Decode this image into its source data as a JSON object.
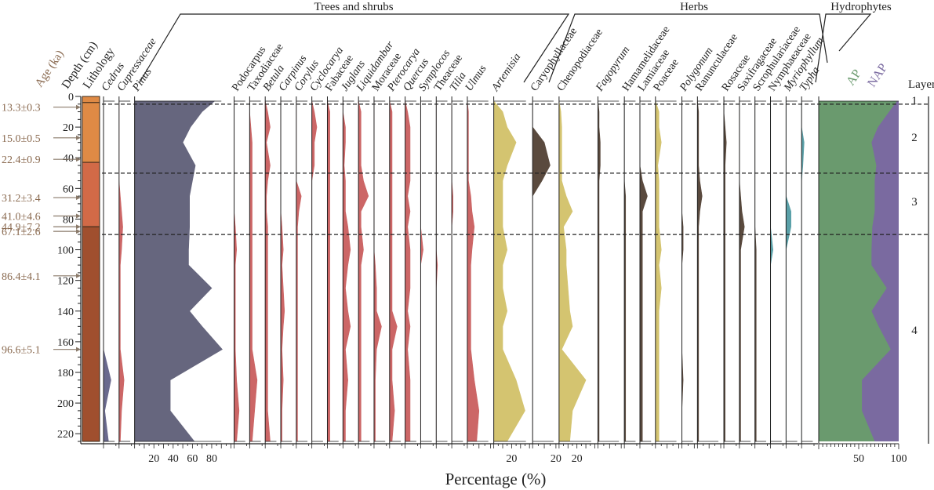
{
  "chart_data": {
    "type": "area",
    "title": "",
    "xlabel": "Percentage (%)",
    "ylabel": "Depth (cm)",
    "ylim": [
      0,
      225
    ],
    "y_ticks": [
      0,
      20,
      40,
      60,
      80,
      100,
      120,
      140,
      160,
      180,
      200,
      220
    ],
    "depth_header": "Depth (cm)",
    "age_header": "Age (ka)",
    "lithology_header": "Lithology",
    "layer_header": "Layer",
    "groups": [
      "Trees and shrubs",
      "Herbs",
      "Hydrophytes"
    ],
    "depths": [
      3,
      10,
      20,
      30,
      45,
      55,
      65,
      75,
      85,
      100,
      110,
      125,
      140,
      150,
      165,
      185,
      205,
      225
    ],
    "ages": [
      {
        "label": "13.3±0.3",
        "depth": 7
      },
      {
        "label": "15.0±0.5",
        "depth": 27
      },
      {
        "label": "22.4±0.9",
        "depth": 41
      },
      {
        "label": "31.2±3.4",
        "depth": 66
      },
      {
        "label": "41.0±4.6",
        "depth": 78
      },
      {
        "label": "44.9±7.2",
        "depth": 85
      },
      {
        "label": "67.1±2.6",
        "depth": 88
      },
      {
        "label": "86.4±4.1",
        "depth": 117
      },
      {
        "label": "96.6±5.1",
        "depth": 165
      }
    ],
    "lithology": [
      {
        "from": 0,
        "to": 4,
        "color": "#df8a45"
      },
      {
        "from": 4,
        "to": 43,
        "color": "#df8a45"
      },
      {
        "from": 43,
        "to": 85,
        "color": "#d26a47"
      },
      {
        "from": 85,
        "to": 225,
        "color": "#a04f2e"
      }
    ],
    "layers": [
      {
        "label": "1",
        "depth": 2
      },
      {
        "label": "2",
        "depth": 26
      },
      {
        "label": "3",
        "depth": 68
      },
      {
        "label": "4",
        "depth": 152
      }
    ],
    "boundaries": [
      2,
      47,
      87
    ],
    "taxa": [
      {
        "name": "Cedrus",
        "italic": true,
        "color": "#6a6a8e",
        "max": 5,
        "values": [
          0,
          0,
          0,
          0,
          0,
          0,
          0,
          0,
          0,
          0,
          0,
          0,
          0,
          0,
          0,
          3,
          0.5,
          2
        ]
      },
      {
        "name": "Cupressaceae",
        "italic": true,
        "color": "#cc6666",
        "max": 5,
        "values": [
          0,
          0,
          0,
          0,
          0,
          0,
          0.5,
          1,
          1.5,
          1,
          0.5,
          0.5,
          0.5,
          0.5,
          0.5,
          2,
          1,
          0.5
        ]
      },
      {
        "name": "Pinus",
        "italic": true,
        "color": "#66667e",
        "max": 100,
        "values": [
          83,
          70,
          58,
          50,
          63,
          60,
          57,
          57,
          57,
          56,
          56,
          80,
          57,
          70,
          91,
          37,
          37,
          62
        ]
      },
      {
        "name": "Podocarpus",
        "italic": false,
        "color": "#cc6666",
        "max": 5,
        "values": [
          0,
          0,
          0,
          0,
          0,
          0,
          0,
          0,
          0.5,
          1,
          0.5,
          0.5,
          0.5,
          0.5,
          0.5,
          1,
          2,
          1
        ]
      },
      {
        "name": "Taxodiaceae",
        "italic": false,
        "color": "#cc6666",
        "max": 5,
        "values": [
          0,
          0,
          0.5,
          1,
          1,
          1,
          1,
          1,
          1,
          1,
          1,
          1,
          1,
          1,
          1,
          3,
          2,
          1
        ]
      },
      {
        "name": "Betula",
        "italic": true,
        "color": "#cc6666",
        "max": 5,
        "values": [
          0,
          1,
          2,
          0.5,
          2,
          1,
          0.5,
          0.5,
          1,
          1,
          1,
          1,
          1,
          1,
          1,
          1,
          1,
          2
        ]
      },
      {
        "name": "Carpinus",
        "italic": true,
        "color": "#cc6666",
        "max": 5,
        "values": [
          0,
          0,
          0,
          0,
          0,
          0,
          0,
          0,
          0.5,
          1,
          0.5,
          1,
          1.5,
          1,
          0.5,
          1,
          0.5,
          0.5
        ]
      },
      {
        "name": "Corylus",
        "italic": true,
        "color": "#cc6666",
        "max": 5,
        "values": [
          0,
          0,
          0,
          0,
          0,
          0,
          2,
          1,
          0.5,
          0.5,
          0.5,
          0.5,
          0.5,
          0.5,
          0.5,
          0.5,
          0.5,
          0.5
        ]
      },
      {
        "name": "Cyclocarya",
        "italic": true,
        "color": "#cc6666",
        "max": 5,
        "values": [
          0,
          1,
          2,
          1,
          1,
          0,
          0,
          0,
          0,
          0,
          0,
          0,
          0,
          0,
          0,
          0,
          0,
          0
        ]
      },
      {
        "name": "Fabaceae",
        "italic": false,
        "color": "#cc6666",
        "max": 5,
        "values": [
          0,
          1,
          1,
          1,
          1,
          1,
          1,
          1,
          1,
          1,
          1,
          1,
          1,
          1,
          1,
          1,
          1,
          1
        ]
      },
      {
        "name": "Juglans",
        "italic": true,
        "color": "#cc6666",
        "max": 5,
        "values": [
          0,
          0,
          1,
          1,
          0.5,
          1,
          1,
          1,
          2,
          3,
          2,
          1,
          2,
          3,
          1,
          2,
          1,
          1
        ]
      },
      {
        "name": "Liquidambar",
        "italic": true,
        "color": "#cc6666",
        "max": 5,
        "values": [
          0,
          1,
          1,
          1,
          1,
          2,
          4,
          1,
          1,
          2,
          1,
          1,
          1,
          1,
          1,
          1,
          1,
          1
        ]
      },
      {
        "name": "Moraceae",
        "italic": false,
        "color": "#cc6666",
        "max": 5,
        "values": [
          0,
          0,
          0,
          0,
          0,
          0,
          0,
          0,
          0,
          0,
          0.5,
          1,
          1,
          3,
          1,
          0.5,
          0.5,
          0.5
        ]
      },
      {
        "name": "Pterocarya",
        "italic": true,
        "color": "#cc6666",
        "max": 5,
        "values": [
          0,
          1,
          1,
          1,
          1,
          1,
          1,
          1,
          1,
          1,
          1,
          1,
          1,
          3,
          1,
          1,
          2,
          1
        ]
      },
      {
        "name": "Quercus",
        "italic": true,
        "color": "#cc6666",
        "max": 5,
        "values": [
          0,
          1,
          2,
          2,
          2,
          2,
          1,
          2,
          1,
          2,
          2,
          2,
          1,
          2,
          1,
          2,
          2,
          2
        ]
      },
      {
        "name": "Symplocos",
        "italic": true,
        "color": "#cc6666",
        "max": 5,
        "values": [
          0,
          0,
          0,
          0,
          0,
          0,
          0,
          0,
          0,
          1,
          0,
          0,
          0,
          0,
          0,
          0,
          0,
          0
        ]
      },
      {
        "name": "Theaceae",
        "italic": false,
        "color": "#cc6666",
        "max": 5,
        "values": [
          0,
          0,
          0,
          0,
          0,
          0,
          0,
          0,
          0,
          0,
          0.5,
          0,
          0,
          0,
          0,
          0,
          0,
          0
        ]
      },
      {
        "name": "Tilia",
        "italic": true,
        "color": "#cc6666",
        "max": 5,
        "values": [
          0,
          0,
          0,
          0,
          0,
          0,
          0.5,
          0.5,
          0,
          0,
          0,
          0,
          0,
          0,
          0,
          0,
          0,
          0
        ]
      },
      {
        "name": "Ulmus",
        "italic": true,
        "color": "#cc6666",
        "max": 20,
        "values": [
          0,
          1,
          1,
          1,
          1,
          1,
          3,
          4,
          6,
          4,
          3,
          3,
          3,
          3,
          3,
          6,
          10,
          8
        ]
      },
      {
        "name": "Artemisia",
        "italic": true,
        "color": "#d4c470",
        "max": 40,
        "values": [
          0,
          10,
          15,
          25,
          15,
          10,
          10,
          10,
          10,
          15,
          10,
          10,
          15,
          10,
          10,
          25,
          35,
          15
        ]
      },
      {
        "name": "Caryophyllaceae",
        "italic": false,
        "color": "#5a4a3e",
        "max": 20,
        "values": [
          0,
          0,
          0,
          10,
          15,
          8,
          0,
          0,
          0,
          0,
          0,
          0,
          0,
          0,
          0,
          0,
          0,
          0
        ]
      },
      {
        "name": "Chenopodiaceae",
        "italic": false,
        "color": "#d4c470",
        "max": 40,
        "values": [
          0,
          2,
          3,
          3,
          3,
          3,
          8,
          15,
          5,
          8,
          8,
          10,
          12,
          15,
          3,
          30,
          15,
          12
        ]
      },
      {
        "name": "Fagopyrum",
        "italic": true,
        "color": "#5a4a3e",
        "max": 20,
        "values": [
          0,
          1,
          1,
          2,
          2,
          1,
          1,
          1,
          1,
          1,
          1,
          1,
          1,
          1,
          1,
          1,
          1,
          1
        ]
      },
      {
        "name": "Hamamelidaceae",
        "italic": false,
        "color": "#5a4a3e",
        "max": 5,
        "values": [
          0,
          0,
          0,
          0,
          0,
          0,
          0.5,
          0.5,
          0.5,
          0.5,
          0.5,
          0.5,
          0.5,
          0.5,
          0.5,
          0.5,
          0.5,
          0.5
        ]
      },
      {
        "name": "Lamiaceae",
        "italic": false,
        "color": "#5a4a3e",
        "max": 5,
        "values": [
          0,
          0,
          0,
          0,
          0,
          1,
          3,
          1,
          1,
          1,
          1,
          1,
          1,
          1,
          1,
          1,
          1,
          1
        ]
      },
      {
        "name": "Poaceae",
        "italic": false,
        "color": "#d4c470",
        "max": 20,
        "values": [
          0,
          3,
          3,
          5,
          2,
          3,
          3,
          3,
          3,
          5,
          3,
          5,
          3,
          3,
          3,
          3,
          3,
          3
        ]
      },
      {
        "name": "Polygonum",
        "italic": true,
        "color": "#5a4a3e",
        "max": 10,
        "values": [
          0,
          0,
          0,
          0,
          0,
          0,
          0,
          0,
          1,
          1,
          0,
          0,
          0,
          0,
          0,
          1,
          0,
          0
        ]
      },
      {
        "name": "Ranunculaceae",
        "italic": false,
        "color": "#5a4a3e",
        "max": 20,
        "values": [
          0,
          1,
          1,
          1,
          1,
          2,
          4,
          2,
          1,
          1,
          1,
          1,
          1,
          1,
          1,
          1,
          1,
          1
        ]
      },
      {
        "name": "Rosaceae",
        "italic": false,
        "color": "#5a4a3e",
        "max": 5,
        "values": [
          0,
          0,
          0.5,
          1,
          0.5,
          0.5,
          0.5,
          0.5,
          0.5,
          0.5,
          0.5,
          0.5,
          0.5,
          0.5,
          0.5,
          0.5,
          0.5,
          0.5
        ]
      },
      {
        "name": "Saxifragaceae",
        "italic": false,
        "color": "#5a4a3e",
        "max": 5,
        "values": [
          0,
          0,
          0,
          0,
          0,
          0,
          0.5,
          1,
          2,
          0.5,
          0.5,
          0.5,
          0.5,
          0.5,
          0.5,
          0.5,
          0.5,
          0.5
        ]
      },
      {
        "name": "Scrophulariaceae",
        "italic": false,
        "color": "#5a4a3e",
        "max": 5,
        "values": [
          0,
          0,
          0,
          0,
          0,
          0,
          0,
          0,
          0,
          0.5,
          0.5,
          0.5,
          0.5,
          0.5,
          0.5,
          0.5,
          0.5,
          0.5
        ]
      },
      {
        "name": "Nymphaeaceae",
        "italic": false,
        "color": "#5aa0a8",
        "max": 5,
        "values": [
          0,
          0,
          0,
          0,
          0,
          0,
          0,
          0,
          0,
          1,
          0,
          0,
          0,
          0,
          0,
          0,
          0,
          0
        ]
      },
      {
        "name": "Myriophyllum",
        "italic": true,
        "color": "#5aa0a8",
        "max": 5,
        "values": [
          0,
          0,
          0,
          0,
          0,
          0,
          0,
          2,
          2,
          0,
          0,
          0,
          0,
          0,
          0,
          0,
          0,
          0
        ]
      },
      {
        "name": "Typha",
        "italic": true,
        "color": "#5aa0a8",
        "max": 5,
        "values": [
          0,
          0,
          0,
          1,
          0.5,
          0,
          0,
          0,
          0,
          0,
          0,
          0,
          0,
          0,
          0,
          0,
          0,
          0
        ]
      }
    ],
    "ap_nap": {
      "ap_label": "AP",
      "nap_label": "NAP",
      "ap_color": "#6a9a6e",
      "nap_color": "#7a6aa0",
      "ap_values": [
        98,
        88,
        74,
        66,
        72,
        70,
        70,
        70,
        67,
        66,
        66,
        85,
        66,
        75,
        90,
        54,
        54,
        70
      ],
      "x_ticks": [
        50,
        100
      ]
    },
    "section_ticks": {
      "pinus": [
        20,
        40,
        60,
        80
      ],
      "artemisia": [
        20
      ],
      "caryophyllaceae": [
        20
      ],
      "chenopodiaceae": [
        20
      ]
    }
  }
}
